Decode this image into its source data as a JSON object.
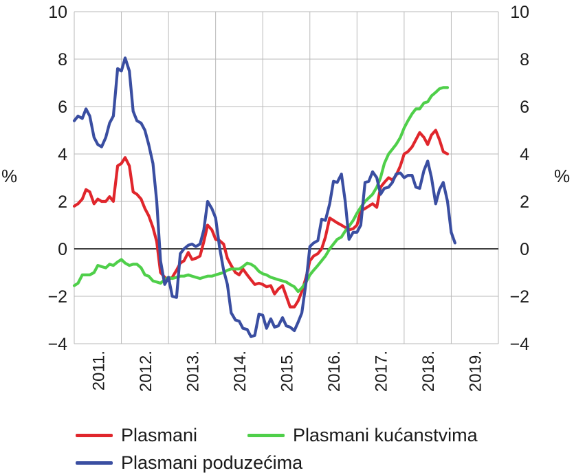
{
  "chart_data": {
    "type": "line",
    "unit_left": "%",
    "unit_right": "%",
    "ylim": [
      -4,
      10
    ],
    "yticks": [
      10,
      8,
      6,
      4,
      2,
      0,
      -2,
      -4
    ],
    "ytick_labels": [
      "10",
      "8",
      "6",
      "4",
      "2",
      "0",
      "−2",
      "−4"
    ],
    "x_categories": [
      "2011.",
      "2012.",
      "2013.",
      "2014.",
      "2015.",
      "2016.",
      "2017.",
      "2018.",
      "2019."
    ],
    "xlim": [
      2011,
      2020
    ],
    "grid": true,
    "legend_position": "bottom",
    "series": [
      {
        "name": "Plasmani",
        "color": "#e0262c",
        "points": [
          [
            2011.0,
            1.8
          ],
          [
            2011.08,
            1.9
          ],
          [
            2011.17,
            2.1
          ],
          [
            2011.25,
            2.5
          ],
          [
            2011.33,
            2.4
          ],
          [
            2011.42,
            1.9
          ],
          [
            2011.5,
            2.1
          ],
          [
            2011.58,
            2.0
          ],
          [
            2011.67,
            2.0
          ],
          [
            2011.75,
            2.2
          ],
          [
            2011.83,
            2.0
          ],
          [
            2011.92,
            3.5
          ],
          [
            2012.0,
            3.6
          ],
          [
            2012.08,
            3.85
          ],
          [
            2012.17,
            3.5
          ],
          [
            2012.25,
            2.4
          ],
          [
            2012.33,
            2.3
          ],
          [
            2012.42,
            2.1
          ],
          [
            2012.5,
            1.7
          ],
          [
            2012.58,
            1.4
          ],
          [
            2012.67,
            0.9
          ],
          [
            2012.75,
            0.3
          ],
          [
            2012.83,
            -1.0
          ],
          [
            2012.92,
            -1.2
          ],
          [
            2013.0,
            -1.3
          ],
          [
            2013.08,
            -1.2
          ],
          [
            2013.17,
            -0.9
          ],
          [
            2013.25,
            -0.6
          ],
          [
            2013.33,
            -0.5
          ],
          [
            2013.42,
            -0.15
          ],
          [
            2013.5,
            -0.45
          ],
          [
            2013.58,
            -0.4
          ],
          [
            2013.67,
            -0.3
          ],
          [
            2013.75,
            0.3
          ],
          [
            2013.83,
            1.0
          ],
          [
            2013.92,
            0.8
          ],
          [
            2014.0,
            0.4
          ],
          [
            2014.08,
            0.35
          ],
          [
            2014.17,
            0.2
          ],
          [
            2014.25,
            -0.4
          ],
          [
            2014.33,
            -0.7
          ],
          [
            2014.42,
            -1.0
          ],
          [
            2014.5,
            -1.1
          ],
          [
            2014.58,
            -0.85
          ],
          [
            2014.67,
            -1.1
          ],
          [
            2014.75,
            -1.3
          ],
          [
            2014.83,
            -1.5
          ],
          [
            2014.92,
            -1.45
          ],
          [
            2015.0,
            -1.5
          ],
          [
            2015.08,
            -1.6
          ],
          [
            2015.17,
            -1.55
          ],
          [
            2015.25,
            -1.9
          ],
          [
            2015.33,
            -1.7
          ],
          [
            2015.42,
            -1.55
          ],
          [
            2015.5,
            -2.0
          ],
          [
            2015.58,
            -2.45
          ],
          [
            2015.67,
            -2.45
          ],
          [
            2015.75,
            -2.2
          ],
          [
            2015.83,
            -1.8
          ],
          [
            2015.92,
            -1.2
          ],
          [
            2016.0,
            -0.5
          ],
          [
            2016.08,
            -0.3
          ],
          [
            2016.17,
            -0.2
          ],
          [
            2016.25,
            0.0
          ],
          [
            2016.33,
            0.5
          ],
          [
            2016.42,
            1.3
          ],
          [
            2016.5,
            1.2
          ],
          [
            2016.58,
            1.1
          ],
          [
            2016.67,
            1.0
          ],
          [
            2016.75,
            0.9
          ],
          [
            2016.83,
            0.8
          ],
          [
            2016.92,
            0.85
          ],
          [
            2017.0,
            1.0
          ],
          [
            2017.08,
            1.6
          ],
          [
            2017.17,
            1.7
          ],
          [
            2017.25,
            1.8
          ],
          [
            2017.33,
            1.9
          ],
          [
            2017.42,
            1.75
          ],
          [
            2017.5,
            2.6
          ],
          [
            2017.58,
            2.8
          ],
          [
            2017.67,
            3.0
          ],
          [
            2017.75,
            2.9
          ],
          [
            2017.83,
            3.1
          ],
          [
            2017.92,
            3.5
          ],
          [
            2018.0,
            4.0
          ],
          [
            2018.08,
            4.1
          ],
          [
            2018.17,
            4.3
          ],
          [
            2018.25,
            4.6
          ],
          [
            2018.33,
            4.9
          ],
          [
            2018.42,
            4.7
          ],
          [
            2018.5,
            4.4
          ],
          [
            2018.58,
            4.8
          ],
          [
            2018.67,
            5.0
          ],
          [
            2018.75,
            4.6
          ],
          [
            2018.83,
            4.1
          ],
          [
            2018.92,
            4.0
          ]
        ]
      },
      {
        "name": "Plasmani kućanstvima",
        "color": "#4fcf4a",
        "points": [
          [
            2011.0,
            -1.55
          ],
          [
            2011.08,
            -1.45
          ],
          [
            2011.17,
            -1.1
          ],
          [
            2011.25,
            -1.1
          ],
          [
            2011.33,
            -1.1
          ],
          [
            2011.42,
            -1.0
          ],
          [
            2011.5,
            -0.7
          ],
          [
            2011.58,
            -0.75
          ],
          [
            2011.67,
            -0.8
          ],
          [
            2011.75,
            -0.65
          ],
          [
            2011.83,
            -0.7
          ],
          [
            2011.92,
            -0.55
          ],
          [
            2012.0,
            -0.45
          ],
          [
            2012.08,
            -0.6
          ],
          [
            2012.17,
            -0.7
          ],
          [
            2012.25,
            -0.65
          ],
          [
            2012.33,
            -0.65
          ],
          [
            2012.42,
            -0.8
          ],
          [
            2012.5,
            -1.1
          ],
          [
            2012.58,
            -1.15
          ],
          [
            2012.67,
            -1.35
          ],
          [
            2012.75,
            -1.4
          ],
          [
            2012.83,
            -1.45
          ],
          [
            2012.92,
            -1.3
          ],
          [
            2013.0,
            -1.2
          ],
          [
            2013.08,
            -1.25
          ],
          [
            2013.17,
            -1.2
          ],
          [
            2013.25,
            -1.15
          ],
          [
            2013.33,
            -1.15
          ],
          [
            2013.42,
            -1.1
          ],
          [
            2013.5,
            -1.15
          ],
          [
            2013.58,
            -1.2
          ],
          [
            2013.67,
            -1.25
          ],
          [
            2013.75,
            -1.2
          ],
          [
            2013.83,
            -1.15
          ],
          [
            2013.92,
            -1.15
          ],
          [
            2014.0,
            -1.1
          ],
          [
            2014.08,
            -1.05
          ],
          [
            2014.17,
            -1.0
          ],
          [
            2014.25,
            -0.9
          ],
          [
            2014.33,
            -0.85
          ],
          [
            2014.42,
            -0.85
          ],
          [
            2014.5,
            -0.85
          ],
          [
            2014.58,
            -0.75
          ],
          [
            2014.67,
            -0.6
          ],
          [
            2014.75,
            -0.65
          ],
          [
            2014.83,
            -0.75
          ],
          [
            2014.92,
            -0.95
          ],
          [
            2015.0,
            -1.05
          ],
          [
            2015.08,
            -1.1
          ],
          [
            2015.17,
            -1.2
          ],
          [
            2015.25,
            -1.25
          ],
          [
            2015.33,
            -1.3
          ],
          [
            2015.42,
            -1.35
          ],
          [
            2015.5,
            -1.4
          ],
          [
            2015.58,
            -1.5
          ],
          [
            2015.67,
            -1.6
          ],
          [
            2015.75,
            -1.8
          ],
          [
            2015.83,
            -1.65
          ],
          [
            2015.92,
            -1.4
          ],
          [
            2016.0,
            -1.1
          ],
          [
            2016.08,
            -0.9
          ],
          [
            2016.17,
            -0.7
          ],
          [
            2016.25,
            -0.5
          ],
          [
            2016.33,
            -0.3
          ],
          [
            2016.42,
            0.0
          ],
          [
            2016.5,
            0.2
          ],
          [
            2016.58,
            0.4
          ],
          [
            2016.67,
            0.5
          ],
          [
            2016.75,
            0.75
          ],
          [
            2016.83,
            0.95
          ],
          [
            2016.92,
            1.2
          ],
          [
            2017.0,
            1.5
          ],
          [
            2017.08,
            1.75
          ],
          [
            2017.17,
            2.0
          ],
          [
            2017.25,
            2.15
          ],
          [
            2017.33,
            2.3
          ],
          [
            2017.42,
            2.6
          ],
          [
            2017.5,
            3.0
          ],
          [
            2017.58,
            3.6
          ],
          [
            2017.67,
            4.0
          ],
          [
            2017.75,
            4.2
          ],
          [
            2017.83,
            4.4
          ],
          [
            2017.92,
            4.7
          ],
          [
            2018.0,
            5.1
          ],
          [
            2018.08,
            5.4
          ],
          [
            2018.17,
            5.7
          ],
          [
            2018.25,
            5.9
          ],
          [
            2018.33,
            5.9
          ],
          [
            2018.42,
            6.15
          ],
          [
            2018.5,
            6.2
          ],
          [
            2018.58,
            6.45
          ],
          [
            2018.67,
            6.6
          ],
          [
            2018.75,
            6.75
          ],
          [
            2018.83,
            6.8
          ],
          [
            2018.92,
            6.8
          ]
        ]
      },
      {
        "name": "Plasmani poduzećima",
        "color": "#3a4ea1",
        "points": [
          [
            2011.0,
            5.4
          ],
          [
            2011.08,
            5.6
          ],
          [
            2011.17,
            5.5
          ],
          [
            2011.25,
            5.9
          ],
          [
            2011.33,
            5.6
          ],
          [
            2011.42,
            4.7
          ],
          [
            2011.5,
            4.4
          ],
          [
            2011.58,
            4.3
          ],
          [
            2011.67,
            4.7
          ],
          [
            2011.75,
            5.3
          ],
          [
            2011.83,
            5.6
          ],
          [
            2011.92,
            7.6
          ],
          [
            2012.0,
            7.5
          ],
          [
            2012.08,
            8.05
          ],
          [
            2012.17,
            7.5
          ],
          [
            2012.25,
            5.8
          ],
          [
            2012.33,
            5.4
          ],
          [
            2012.42,
            5.3
          ],
          [
            2012.5,
            5.0
          ],
          [
            2012.58,
            4.4
          ],
          [
            2012.67,
            3.6
          ],
          [
            2012.75,
            2.0
          ],
          [
            2012.83,
            -0.5
          ],
          [
            2012.92,
            -1.5
          ],
          [
            2013.0,
            -1.2
          ],
          [
            2013.08,
            -2.0
          ],
          [
            2013.17,
            -2.05
          ],
          [
            2013.25,
            -0.2
          ],
          [
            2013.33,
            0.0
          ],
          [
            2013.42,
            0.15
          ],
          [
            2013.5,
            0.2
          ],
          [
            2013.58,
            0.1
          ],
          [
            2013.67,
            0.2
          ],
          [
            2013.75,
            0.8
          ],
          [
            2013.83,
            2.0
          ],
          [
            2013.92,
            1.7
          ],
          [
            2014.0,
            1.3
          ],
          [
            2014.08,
            0.1
          ],
          [
            2014.17,
            -0.9
          ],
          [
            2014.25,
            -1.5
          ],
          [
            2014.33,
            -2.7
          ],
          [
            2014.42,
            -3.0
          ],
          [
            2014.5,
            -3.05
          ],
          [
            2014.58,
            -3.35
          ],
          [
            2014.67,
            -3.4
          ],
          [
            2014.75,
            -3.7
          ],
          [
            2014.83,
            -3.65
          ],
          [
            2014.92,
            -2.75
          ],
          [
            2015.0,
            -2.8
          ],
          [
            2015.08,
            -3.35
          ],
          [
            2015.17,
            -2.95
          ],
          [
            2015.25,
            -3.3
          ],
          [
            2015.33,
            -3.25
          ],
          [
            2015.42,
            -2.9
          ],
          [
            2015.5,
            -3.25
          ],
          [
            2015.58,
            -3.3
          ],
          [
            2015.67,
            -3.45
          ],
          [
            2015.75,
            -3.1
          ],
          [
            2015.83,
            -2.7
          ],
          [
            2015.92,
            -1.4
          ],
          [
            2016.0,
            0.1
          ],
          [
            2016.08,
            0.25
          ],
          [
            2016.17,
            0.35
          ],
          [
            2016.25,
            1.25
          ],
          [
            2016.33,
            1.2
          ],
          [
            2016.42,
            1.9
          ],
          [
            2016.5,
            2.85
          ],
          [
            2016.58,
            2.8
          ],
          [
            2016.67,
            3.15
          ],
          [
            2016.75,
            2.0
          ],
          [
            2016.83,
            0.4
          ],
          [
            2016.92,
            0.7
          ],
          [
            2017.0,
            0.7
          ],
          [
            2017.08,
            1.0
          ],
          [
            2017.17,
            2.8
          ],
          [
            2017.25,
            2.85
          ],
          [
            2017.33,
            3.25
          ],
          [
            2017.42,
            3.0
          ],
          [
            2017.5,
            2.3
          ],
          [
            2017.58,
            2.55
          ],
          [
            2017.67,
            2.6
          ],
          [
            2017.75,
            2.8
          ],
          [
            2017.83,
            3.15
          ],
          [
            2017.92,
            3.2
          ],
          [
            2018.0,
            3.0
          ],
          [
            2018.08,
            3.1
          ],
          [
            2018.17,
            3.1
          ],
          [
            2018.25,
            2.6
          ],
          [
            2018.33,
            2.55
          ],
          [
            2018.42,
            3.3
          ],
          [
            2018.5,
            3.7
          ],
          [
            2018.58,
            3.0
          ],
          [
            2018.67,
            1.9
          ],
          [
            2018.75,
            2.5
          ],
          [
            2018.83,
            2.8
          ],
          [
            2018.92,
            2.0
          ],
          [
            2019.0,
            0.7
          ],
          [
            2019.08,
            0.25
          ]
        ]
      }
    ]
  }
}
